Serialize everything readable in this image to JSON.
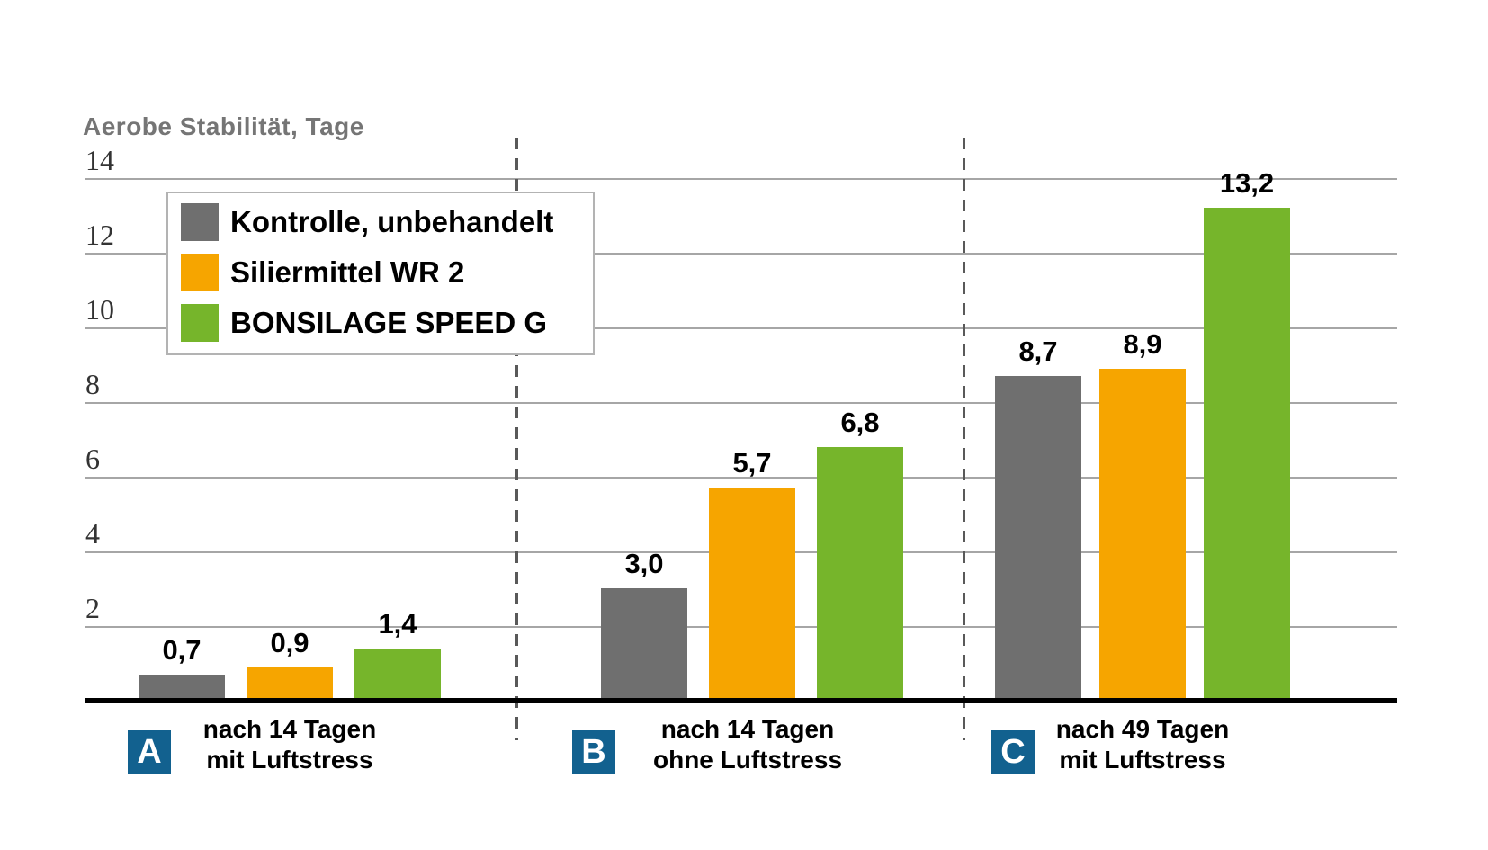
{
  "chart_data": {
    "type": "bar",
    "title": "Aerobe Stabilität, Tage",
    "ylabel": "Aerobe Stabilität, Tage",
    "xlabel": "",
    "ylim": [
      0,
      14
    ],
    "yticks": [
      2,
      4,
      6,
      8,
      10,
      12,
      14
    ],
    "grid": "horizontal",
    "legend_position": "top-left",
    "decimal_separator": ",",
    "categories": [
      "nach 14 Tagen mit Luftstress",
      "nach 14 Tagen ohne Luftstress",
      "nach 49 Tagen mit Luftstress"
    ],
    "series": [
      {
        "name": "Kontrolle, unbehandelt",
        "color": "#6F6F6F",
        "values": [
          0.7,
          3.0,
          8.7
        ],
        "labels": [
          "0,7",
          "3,0",
          "8,7"
        ]
      },
      {
        "name": "Siliermittel WR 2",
        "color": "#F6A500",
        "values": [
          0.9,
          5.7,
          8.9
        ],
        "labels": [
          "0,9",
          "5,7",
          "8,9"
        ]
      },
      {
        "name": "BONSILAGE SPEED G",
        "color": "#76B52B",
        "values": [
          1.4,
          6.8,
          13.2
        ],
        "labels": [
          "1,4",
          "6,8",
          "13,2"
        ]
      }
    ],
    "groups": [
      {
        "badge": "A",
        "label_lines": [
          "nach 14 Tagen",
          "mit Luftstress"
        ]
      },
      {
        "badge": "B",
        "label_lines": [
          "nach 14 Tagen",
          "ohne Luftstress"
        ]
      },
      {
        "badge": "C",
        "label_lines": [
          "nach 49 Tagen",
          "mit Luftstress"
        ]
      }
    ],
    "colors": {
      "badge_background": "#12618F",
      "badge_text": "#FFFFFF",
      "axis_line": "#000000",
      "gridline": "#A6A6A6",
      "separator_dash": "#595959",
      "title_text": "#757575",
      "tick_text": "#333333",
      "value_text": "#000000",
      "group_label_text": "#000000"
    }
  }
}
